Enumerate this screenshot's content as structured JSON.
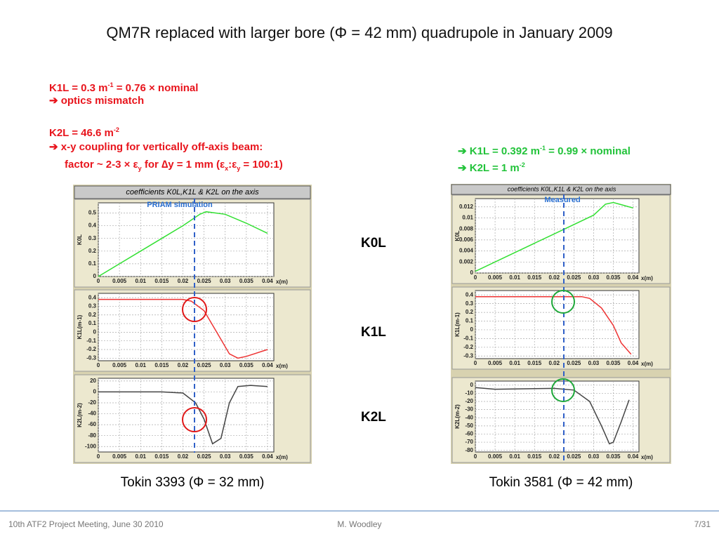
{
  "header": {
    "title": "QM7R replaced with larger bore (Φ = 42 mm) quadrupole in January 2009"
  },
  "notes": {
    "k1l": [
      "K1L = 0.3 m",
      "-1",
      " = 0.76 × nominal"
    ],
    "k1l_effect": "➔ optics mismatch",
    "k2l": [
      "K2L = 46.6 m",
      "-2"
    ],
    "k2l_effect": "➔ x-y coupling for vertically off-axis beam:",
    "k2l_factor": [
      "factor ~ 2-3 × ε",
      "y",
      " for ∆y = 1 mm (ε",
      "x",
      ":ε",
      "y",
      " = 100:1)"
    ],
    "new_k1l": [
      "➔ K1L = 0.392 m",
      "-1",
      " = 0.99 × nominal"
    ],
    "new_k2l": [
      "➔ K2L = 1 m",
      "-2"
    ]
  },
  "row_labels": [
    "K0L",
    "K1L",
    "K2L"
  ],
  "panels": [
    {
      "header": "coefficients K0L,K1L & K2L on the axis",
      "annotation": "PRIAM simulation",
      "caption": "Tokin 3393 (Φ = 32 mm)"
    },
    {
      "header": "coefficients K0L,K1L & K2L on the axis",
      "annotation": "Measured",
      "caption": "Tokin 3581 (Φ = 42 mm)"
    }
  ],
  "chart_data": [
    {
      "type": "line",
      "ylabel": "K0L",
      "xlabel": "x(m)",
      "color": "#33e033",
      "x": [
        0,
        0.005,
        0.01,
        0.015,
        0.02,
        0.024,
        0.0255,
        0.03,
        0.035,
        0.04
      ],
      "values": [
        0,
        0.1,
        0.2,
        0.3,
        0.4,
        0.49,
        0.51,
        0.49,
        0.42,
        0.34
      ],
      "xlim": [
        0,
        0.0415
      ],
      "ylim": [
        0,
        0.58
      ],
      "xticks": [
        0,
        0.005,
        0.01,
        0.015,
        0.02,
        0.025,
        0.03,
        0.035,
        0.04
      ],
      "yticks": [
        0,
        0.1,
        0.2,
        0.3,
        0.4,
        0.5
      ],
      "grid": true
    },
    {
      "type": "line",
      "ylabel": "K1L(m-1)",
      "xlabel": "x(m)",
      "color": "#ee3333",
      "x": [
        0,
        0.005,
        0.01,
        0.015,
        0.02,
        0.022,
        0.025,
        0.028,
        0.031,
        0.033,
        0.035,
        0.04
      ],
      "values": [
        0.38,
        0.38,
        0.38,
        0.38,
        0.38,
        0.36,
        0.25,
        0,
        -0.25,
        -0.3,
        -0.28,
        -0.2
      ],
      "xlim": [
        0,
        0.0415
      ],
      "ylim": [
        -0.33,
        0.45
      ],
      "xticks": [
        0,
        0.005,
        0.01,
        0.015,
        0.02,
        0.025,
        0.03,
        0.035,
        0.04
      ],
      "yticks": [
        -0.3,
        -0.2,
        -0.1,
        0,
        0.1,
        0.2,
        0.3,
        0.4
      ],
      "grid": true
    },
    {
      "type": "line",
      "ylabel": "K2L(m-2)",
      "xlabel": "x(m)",
      "color": "#444444",
      "x": [
        0,
        0.005,
        0.01,
        0.015,
        0.02,
        0.023,
        0.025,
        0.027,
        0.029,
        0.031,
        0.033,
        0.036,
        0.04
      ],
      "values": [
        0,
        0,
        0,
        0,
        -2,
        -20,
        -50,
        -95,
        -85,
        -20,
        10,
        12,
        10
      ],
      "xlim": [
        0,
        0.0415
      ],
      "ylim": [
        -110,
        25
      ],
      "xticks": [
        0,
        0.005,
        0.01,
        0.015,
        0.02,
        0.025,
        0.03,
        0.035,
        0.04
      ],
      "yticks": [
        -100,
        -80,
        -60,
        -40,
        -20,
        0,
        20
      ],
      "grid": true
    },
    {
      "type": "line",
      "ylabel": "K0L",
      "xlabel": "x(m)",
      "color": "#33e033",
      "x": [
        0,
        0.01,
        0.02,
        0.03,
        0.033,
        0.035,
        0.04
      ],
      "values": [
        0.0003,
        0.0037,
        0.0071,
        0.0105,
        0.0125,
        0.0128,
        0.0118
      ],
      "xlim": [
        0,
        0.0415
      ],
      "ylim": [
        0,
        0.0135
      ],
      "xticks": [
        0,
        0.005,
        0.01,
        0.015,
        0.02,
        0.025,
        0.03,
        0.035,
        0.04
      ],
      "yticks": [
        0,
        0.002,
        0.004,
        0.006,
        0.008,
        0.01,
        0.012
      ],
      "grid": true
    },
    {
      "type": "line",
      "ylabel": "K1L(m-1)",
      "xlabel": "x(m)",
      "color": "#ee3333",
      "x": [
        0,
        0.01,
        0.02,
        0.027,
        0.029,
        0.032,
        0.035,
        0.037,
        0.0395
      ],
      "values": [
        0.38,
        0.38,
        0.38,
        0.38,
        0.36,
        0.25,
        0.05,
        -0.15,
        -0.28
      ],
      "xlim": [
        0,
        0.0415
      ],
      "ylim": [
        -0.33,
        0.45
      ],
      "xticks": [
        0,
        0.005,
        0.01,
        0.015,
        0.02,
        0.025,
        0.03,
        0.035,
        0.04
      ],
      "yticks": [
        -0.3,
        -0.2,
        -0.1,
        0,
        0.1,
        0.2,
        0.3,
        0.4
      ],
      "grid": true
    },
    {
      "type": "line",
      "ylabel": "K2L(m-2)",
      "xlabel": "x(m)",
      "color": "#444444",
      "x": [
        0,
        0.005,
        0.02,
        0.025,
        0.029,
        0.032,
        0.034,
        0.035,
        0.037,
        0.039
      ],
      "values": [
        -3,
        -5,
        -4,
        -6,
        -20,
        -50,
        -72,
        -70,
        -45,
        -18
      ],
      "xlim": [
        0,
        0.0415
      ],
      "ylim": [
        -82,
        5
      ],
      "xticks": [
        0,
        0.005,
        0.01,
        0.015,
        0.02,
        0.025,
        0.03,
        0.035,
        0.04
      ],
      "yticks": [
        -80,
        -70,
        -60,
        -50,
        -40,
        -30,
        -20,
        -10,
        0
      ],
      "grid": true
    }
  ],
  "footer": {
    "left": "10th ATF2 Project Meeting, June 30 2010",
    "center": "M. Woodley",
    "right": "7/31"
  }
}
